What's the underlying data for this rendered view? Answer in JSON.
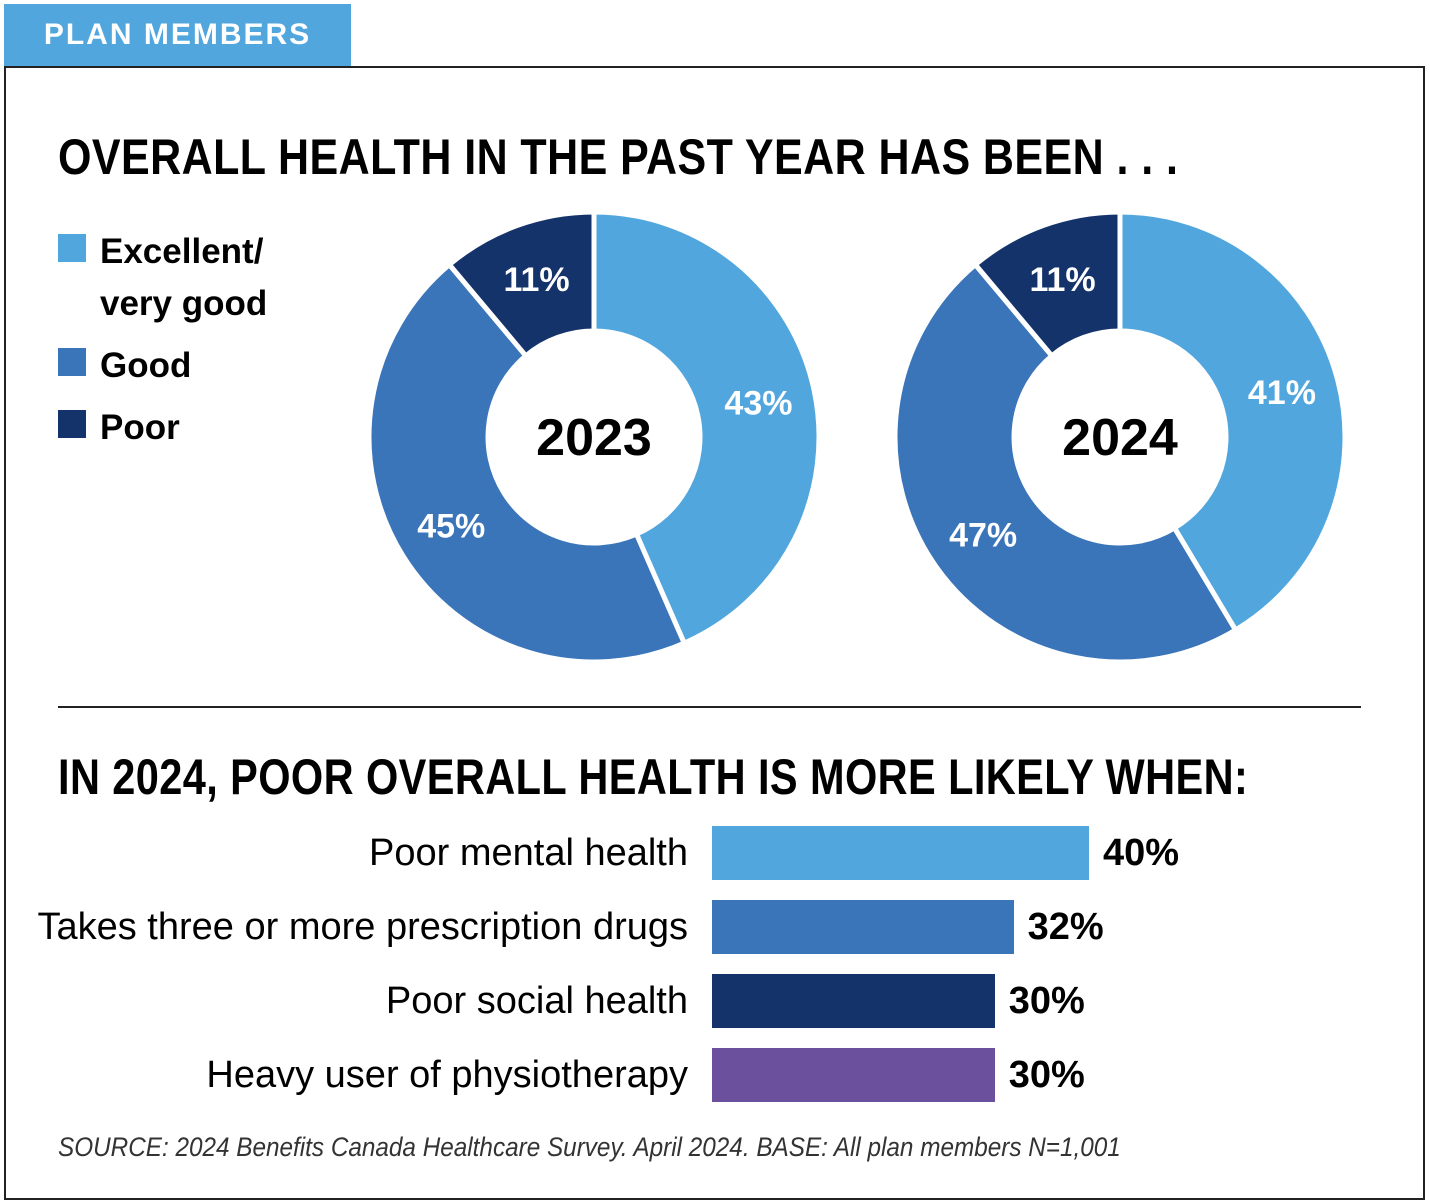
{
  "tag": "PLAN MEMBERS",
  "title_top": "OVERALL HEALTH IN THE PAST YEAR HAS BEEN . . .",
  "title_bottom": "IN 2024, POOR OVERALL HEALTH IS MORE LIKELY WHEN:",
  "source": "SOURCE: 2024 Benefits Canada Healthcare Survey. April 2024. BASE: All plan members N=1,001",
  "colors": {
    "excellent": "#52a6de",
    "good": "#3a74b9",
    "poor": "#15336b",
    "physio": "#6a509d"
  },
  "chart_data": [
    {
      "type": "pie",
      "variant": "donut",
      "center_label": "2023",
      "legend": [
        "Excellent/ very good",
        "Good",
        "Poor"
      ],
      "slices": [
        {
          "name": "Excellent/ very good",
          "value": 43,
          "label": "43%"
        },
        {
          "name": "Good",
          "value": 45,
          "label": "45%"
        },
        {
          "name": "Poor",
          "value": 11,
          "label": "11%"
        }
      ]
    },
    {
      "type": "pie",
      "variant": "donut",
      "center_label": "2024",
      "slices": [
        {
          "name": "Excellent/ very good",
          "value": 41,
          "label": "41%"
        },
        {
          "name": "Good",
          "value": 47,
          "label": "47%"
        },
        {
          "name": "Poor",
          "value": 11,
          "label": "11%"
        }
      ]
    },
    {
      "type": "bar",
      "orientation": "horizontal",
      "categories": [
        "Poor mental health",
        "Takes three or more prescription drugs",
        "Poor social health",
        "Heavy user of physiotherapy"
      ],
      "values": [
        40,
        32,
        30,
        30
      ],
      "labels": [
        "40%",
        "32%",
        "30%",
        "30%"
      ]
    }
  ]
}
